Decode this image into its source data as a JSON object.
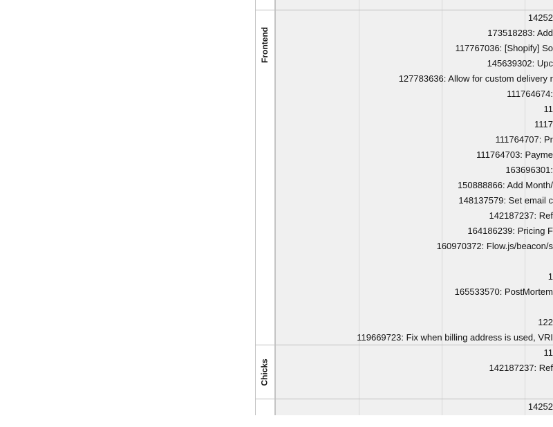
{
  "lanes": [
    {
      "label": "Frontend",
      "items": [
        {
          "text": "14252",
          "right": 0
        },
        {
          "text": "173518283: Add",
          "right": 0
        },
        {
          "text": "117767036: [Shopify] So",
          "right": 0
        },
        {
          "text": "145639302: Upc",
          "right": 0
        },
        {
          "text": "127783636: Allow for custom delivery r",
          "right": 0
        },
        {
          "text": "111764674:",
          "right": 0
        },
        {
          "text": "11",
          "right": 0
        },
        {
          "text": "1117",
          "right": 0
        },
        {
          "text": "111764707: Pr",
          "right": 0
        },
        {
          "text": "111764703: Payme",
          "right": 0
        },
        {
          "text": "163696301:",
          "right": 0
        },
        {
          "text": "150888866: Add Month/",
          "right": 0
        },
        {
          "text": "148137579: Set email c",
          "right": 0
        },
        {
          "text": "142187237: Ref",
          "right": 0
        },
        {
          "text": "164186239: Pricing F",
          "right": 0
        },
        {
          "text": "160970372: Flow.js/beacon/s",
          "right": 0
        },
        {
          "text": "",
          "right": 0
        },
        {
          "text": "1",
          "right": 0
        },
        {
          "text": "165533570: PostMortem",
          "right": 0
        },
        {
          "text": "",
          "right": 0
        },
        {
          "text": "122",
          "right": 0
        },
        {
          "text": "119669723: Fix when billing address is used, VRI",
          "right": 0
        }
      ]
    },
    {
      "label": "Chicks",
      "items": [
        {
          "text": "11",
          "right": 0
        },
        {
          "text": "142187237: Ref",
          "right": 0
        }
      ]
    },
    {
      "label": "",
      "items": [
        {
          "text": "14252",
          "right": 0
        }
      ]
    }
  ]
}
